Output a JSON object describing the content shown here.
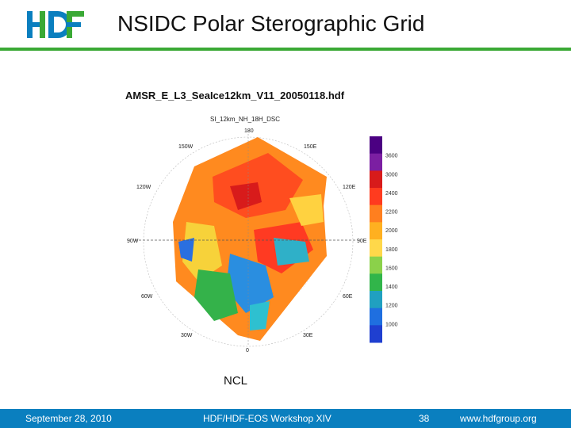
{
  "header": {
    "title": "NSIDC Polar Sterographic Grid",
    "logo_text": "HDF",
    "logo_colors": {
      "blue": "#0a7fbf",
      "green": "#3aa935"
    }
  },
  "figure": {
    "file_title": "AMSR_E_L3_SeaIce12km_V11_20050118.hdf",
    "field_name": "SI_12km_NH_18H_DSC",
    "longitude_labels": [
      "180",
      "150W",
      "150E",
      "120W",
      "120E",
      "90W",
      "90E",
      "60W",
      "60E",
      "30W",
      "30E",
      "0"
    ],
    "colorbar": {
      "tick_labels": [
        "3600",
        "3000",
        "2400",
        "2200",
        "2000",
        "1800",
        "1600",
        "1400",
        "1200",
        "1000"
      ],
      "colors": [
        "#4b0082",
        "#7b1fa2",
        "#d81b1b",
        "#ff3b1f",
        "#ff7f1f",
        "#ffb020",
        "#ffd84a",
        "#8bd14a",
        "#31b54a",
        "#20a0c0",
        "#1f6fe0",
        "#1f3fd0"
      ]
    }
  },
  "caption": "NCL",
  "footer": {
    "date": "September 28, 2010",
    "event": "HDF/HDF-EOS Workshop XIV",
    "page": "38",
    "url": "www.hdfgroup.org"
  }
}
